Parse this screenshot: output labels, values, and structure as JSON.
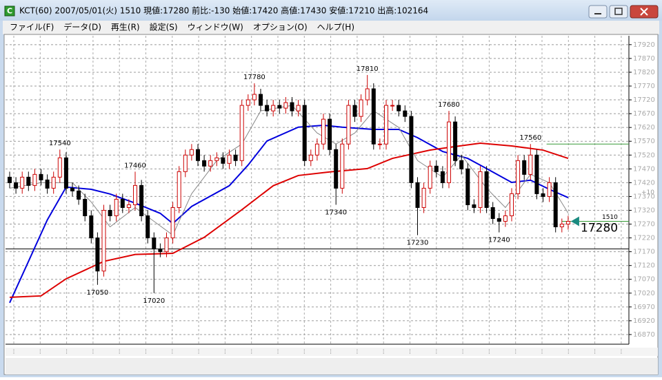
{
  "window": {
    "title": "KCT(60) 2007/05/01(火) 1510 現値:17280 前比:-130 始値:17420 高値:17430 安値:17210 出高:102164"
  },
  "menu": [
    "ファイル(F)",
    "データ(D)",
    "再生(R)",
    "設定(S)",
    "ウィンドウ(W)",
    "オプション(O)",
    "ヘルプ(H)"
  ],
  "chart_data": {
    "type": "candlestick",
    "ylim": [
      16835,
      17952
    ],
    "yticks": [
      16870,
      16920,
      16970,
      17020,
      17070,
      17120,
      17170,
      17220,
      17270,
      17320,
      17370,
      17420,
      17470,
      17520,
      17570,
      17620,
      17670,
      17720,
      17770,
      17820,
      17870,
      17920
    ],
    "grid": true,
    "up_color": "#cc0000",
    "down_color": "#000000",
    "open": [
      17440,
      17420,
      17400,
      17440,
      17410,
      17450,
      17430,
      17400,
      17440,
      17510,
      17400,
      17390,
      17360,
      17300,
      17220,
      17100,
      17320,
      17300,
      17360,
      17330,
      17340,
      17410,
      17300,
      17220,
      17180,
      17170,
      17220,
      17330,
      17460,
      17520,
      17540,
      17500,
      17480,
      17500,
      17510,
      17490,
      17520,
      17500,
      17700,
      17720,
      17740,
      17700,
      17680,
      17700,
      17690,
      17710,
      17680,
      17700,
      17500,
      17520,
      17560,
      17650,
      17540,
      17400,
      17560,
      17700,
      17660,
      17720,
      17760,
      17560,
      17560,
      17700,
      17700,
      17680,
      17660,
      17420,
      17330,
      17400,
      17480,
      17460,
      17420,
      17640,
      17500,
      17470,
      17340,
      17330,
      17460,
      17330,
      17290,
      17280,
      17300,
      17380,
      17500,
      17450,
      17520,
      17380,
      17370,
      17420,
      17260,
      17270
    ],
    "high": [
      17460,
      17440,
      17460,
      17460,
      17470,
      17470,
      17450,
      17460,
      17540,
      17530,
      17420,
      17410,
      17380,
      17320,
      17240,
      17340,
      17340,
      17380,
      17380,
      17360,
      17460,
      17430,
      17320,
      17240,
      17200,
      17240,
      17350,
      17480,
      17540,
      17560,
      17560,
      17520,
      17520,
      17530,
      17530,
      17540,
      17540,
      17720,
      17740,
      17780,
      17760,
      17720,
      17720,
      17720,
      17730,
      17730,
      17720,
      17720,
      17540,
      17580,
      17670,
      17670,
      17560,
      17580,
      17720,
      17720,
      17740,
      17810,
      17780,
      17580,
      17720,
      17720,
      17720,
      17700,
      17680,
      17440,
      17420,
      17500,
      17500,
      17480,
      17680,
      17660,
      17520,
      17490,
      17360,
      17480,
      17480,
      17350,
      17310,
      17320,
      17400,
      17520,
      17520,
      17560,
      17540,
      17400,
      17440,
      17440,
      17290,
      17300
    ],
    "low": [
      17400,
      17380,
      17380,
      17390,
      17390,
      17410,
      17380,
      17380,
      17420,
      17380,
      17370,
      17340,
      17280,
      17200,
      17050,
      17080,
      17280,
      17280,
      17310,
      17310,
      17320,
      17280,
      17200,
      17020,
      17150,
      17150,
      17200,
      17310,
      17440,
      17500,
      17480,
      17460,
      17460,
      17480,
      17470,
      17470,
      17480,
      17480,
      17680,
      17700,
      17680,
      17660,
      17660,
      17670,
      17670,
      17660,
      17660,
      17480,
      17480,
      17500,
      17540,
      17520,
      17340,
      17380,
      17540,
      17640,
      17640,
      17700,
      17540,
      17540,
      17540,
      17680,
      17660,
      17640,
      17400,
      17230,
      17310,
      17380,
      17440,
      17400,
      17400,
      17480,
      17450,
      17320,
      17310,
      17310,
      17310,
      17270,
      17240,
      17260,
      17280,
      17360,
      17430,
      17430,
      17360,
      17350,
      17350,
      17240,
      17240,
      17250
    ],
    "close": [
      17420,
      17400,
      17440,
      17410,
      17450,
      17430,
      17400,
      17440,
      17510,
      17400,
      17390,
      17360,
      17300,
      17220,
      17100,
      17320,
      17300,
      17360,
      17330,
      17340,
      17410,
      17300,
      17220,
      17180,
      17170,
      17220,
      17330,
      17460,
      17520,
      17540,
      17500,
      17480,
      17500,
      17510,
      17490,
      17520,
      17500,
      17700,
      17720,
      17740,
      17700,
      17680,
      17700,
      17690,
      17710,
      17680,
      17700,
      17500,
      17520,
      17560,
      17650,
      17540,
      17400,
      17560,
      17700,
      17660,
      17720,
      17760,
      17560,
      17560,
      17700,
      17700,
      17680,
      17660,
      17420,
      17330,
      17400,
      17480,
      17460,
      17420,
      17640,
      17500,
      17470,
      17340,
      17330,
      17460,
      17330,
      17290,
      17280,
      17300,
      17380,
      17500,
      17450,
      17520,
      17380,
      17370,
      17420,
      17260,
      17270,
      17280
    ],
    "lines": [
      {
        "color": "#0000dd",
        "width": 2,
        "x": [
          0,
          3,
          6,
          9,
          13,
          16,
          20,
          24,
          26,
          29,
          35,
          38,
          41,
          46,
          50,
          53,
          58,
          62,
          65,
          69,
          73,
          76,
          80,
          83,
          86,
          89
        ],
        "values": [
          16985,
          17135,
          17285,
          17404,
          17396,
          17379,
          17346,
          17309,
          17272,
          17334,
          17409,
          17484,
          17571,
          17621,
          17628,
          17621,
          17613,
          17613,
          17583,
          17533,
          17508,
          17471,
          17421,
          17429,
          17396,
          17366
        ]
      },
      {
        "color": "#dd0000",
        "width": 2,
        "x": [
          0,
          5,
          9,
          15,
          20,
          26,
          31,
          37,
          42,
          46,
          51,
          57,
          61,
          67,
          71,
          75,
          80,
          85,
          89
        ],
        "values": [
          17005,
          17010,
          17072,
          17135,
          17160,
          17164,
          17222,
          17322,
          17409,
          17446,
          17459,
          17471,
          17508,
          17538,
          17551,
          17563,
          17553,
          17538,
          17508
        ]
      },
      {
        "color": "#888888",
        "width": 1,
        "x": [
          0,
          5,
          10,
          13,
          16,
          20,
          23,
          26,
          29,
          33,
          37,
          40,
          45,
          49,
          52,
          55,
          58,
          62,
          65,
          69,
          72,
          76,
          79,
          83,
          86,
          89
        ],
        "values": [
          17400,
          17420,
          17420,
          17350,
          17260,
          17330,
          17280,
          17230,
          17380,
          17500,
          17560,
          17680,
          17700,
          17600,
          17560,
          17600,
          17680,
          17620,
          17500,
          17440,
          17520,
          17400,
          17330,
          17450,
          17420,
          17310
        ]
      }
    ],
    "peak_labels": [
      {
        "index": 8,
        "value": 17540,
        "position": "above"
      },
      {
        "index": 20,
        "value": 17460,
        "position": "above"
      },
      {
        "index": 39,
        "value": 17780,
        "position": "above"
      },
      {
        "index": 57,
        "value": 17810,
        "position": "above"
      },
      {
        "index": 70,
        "value": 17680,
        "position": "above"
      },
      {
        "index": 83,
        "value": 17560,
        "position": "above"
      },
      {
        "index": 14,
        "value": 17050,
        "position": "below"
      },
      {
        "index": 23,
        "value": 17020,
        "position": "below"
      },
      {
        "index": 52,
        "value": 17340,
        "position": "below"
      },
      {
        "index": 65,
        "value": 17230,
        "position": "below"
      },
      {
        "index": 78,
        "value": 17240,
        "position": "below"
      }
    ],
    "reference_line": {
      "value": 17180,
      "color": "#000000"
    },
    "high_line": {
      "value": 17560,
      "color": "#339933"
    },
    "current": {
      "value": 17280,
      "time": "1510",
      "color": "#339933",
      "marker_color": "#1a8a80"
    },
    "axis_note": "+10"
  }
}
